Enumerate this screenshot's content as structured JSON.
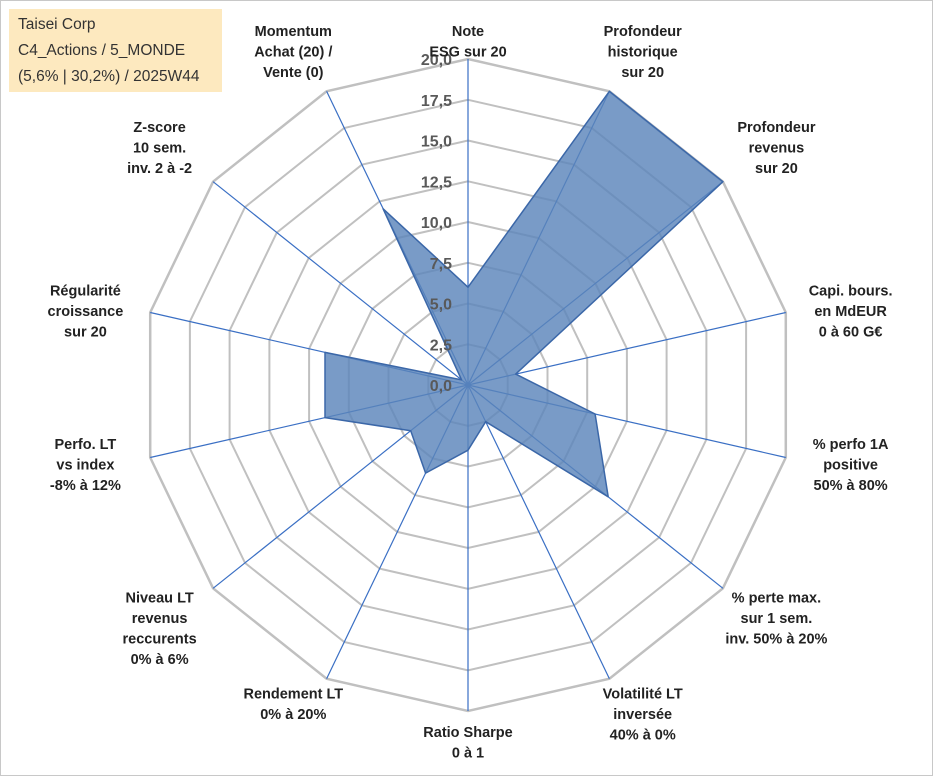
{
  "info": {
    "line1": "Taisei Corp",
    "line2": "C4_Actions / 5_MONDE",
    "line3": "(5,6% | 30,2%) / 2025W44"
  },
  "chart_data": {
    "type": "radar",
    "rmin": 0,
    "rmax": 20,
    "tick_step": 2.5,
    "ticks": [
      "0,0",
      "2,5",
      "5,0",
      "7,5",
      "10,0",
      "12,5",
      "15,0",
      "17,5",
      "20,0"
    ],
    "axes": [
      [
        "Note",
        "ESG sur 20"
      ],
      [
        "Profondeur",
        "historique",
        "sur 20"
      ],
      [
        "Profondeur",
        "revenus",
        "sur 20"
      ],
      [
        "Capi. bours.",
        "en MdEUR",
        "0 à 60 G€"
      ],
      [
        "% perfo 1A",
        "positive",
        "50% à 80%"
      ],
      [
        "% perte max.",
        "sur 1 sem.",
        "inv. 50% à 20%"
      ],
      [
        "Volatilité LT",
        "inversée",
        "40% à 0%"
      ],
      [
        "Ratio Sharpe",
        "0 à 1"
      ],
      [
        "Rendement LT",
        "0% à 20%"
      ],
      [
        "Niveau LT",
        "revenus",
        "reccurents",
        "0% à 6%"
      ],
      [
        "Perfo. LT",
        "vs index",
        "-8% à 12%"
      ],
      [
        "Régularité",
        "croissance",
        "sur 20"
      ],
      [
        "Z-score",
        "10 sem.",
        "inv. 2 à -2"
      ],
      [
        "Momentum",
        "Achat (20) /",
        "Vente (0)"
      ]
    ],
    "values": [
      6.0,
      20.0,
      20.0,
      3.0,
      8.0,
      11.0,
      2.5,
      4.0,
      6.0,
      4.5,
      9.0,
      9.0,
      0.5,
      12.0
    ],
    "colors": {
      "grid": "#c0c0c0",
      "spoke": "#3a6fc4",
      "fill": "#5b85bb",
      "stroke": "#3b67a8"
    }
  }
}
